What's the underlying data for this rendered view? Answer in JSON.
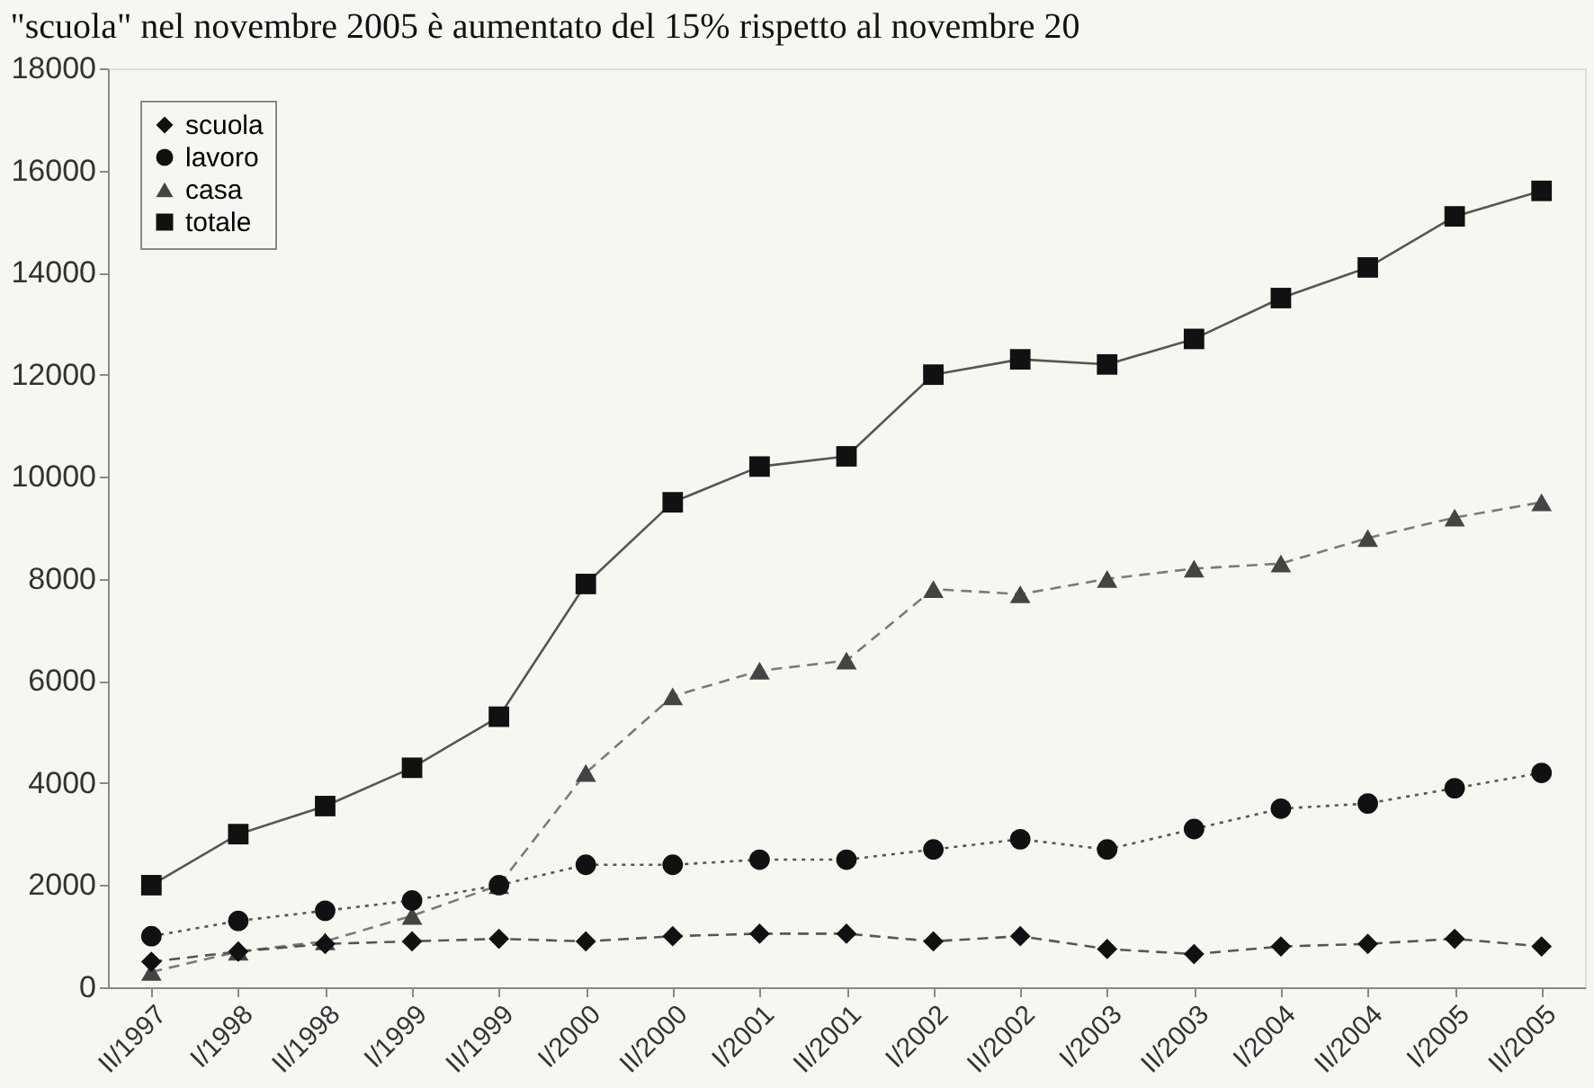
{
  "chart_data": {
    "type": "line",
    "annotations": [
      "\"scuola\" nel novembre 2005 è aumentato del 15% rispetto al novembre 20"
    ],
    "categories": [
      "II/1997",
      "I/1998",
      "II/1998",
      "I/1999",
      "II/1999",
      "I/2000",
      "II/2000",
      "I/2001",
      "II/2001",
      "I/2002",
      "II/2002",
      "I/2003",
      "II/2003",
      "I/2004",
      "II/2004",
      "I/2005",
      "II/2005"
    ],
    "series": [
      {
        "name": "scuola",
        "color": "#111111",
        "marker": "diamond",
        "line_style": "dashed",
        "values": [
          500,
          700,
          850,
          900,
          950,
          900,
          1000,
          1050,
          1050,
          900,
          1000,
          750,
          650,
          800,
          850,
          950,
          800
        ]
      },
      {
        "name": "lavoro",
        "color": "#111111",
        "marker": "circle",
        "line_style": "dotted",
        "values": [
          1000,
          1300,
          1500,
          1700,
          2000,
          2400,
          2400,
          2500,
          2500,
          2700,
          2900,
          2700,
          3100,
          3500,
          3600,
          3900,
          4200
        ]
      },
      {
        "name": "casa",
        "color": "#444444",
        "marker": "triangle",
        "line_style": "dashed",
        "values": [
          300,
          700,
          900,
          1400,
          2000,
          4200,
          5700,
          6200,
          6400,
          7800,
          7700,
          8000,
          8200,
          8300,
          8800,
          9200,
          9500
        ]
      },
      {
        "name": "totale",
        "color": "#111111",
        "marker": "square",
        "line_style": "solid",
        "values": [
          2000,
          3000,
          3550,
          4300,
          5300,
          7900,
          9500,
          10200,
          10400,
          12000,
          12300,
          12200,
          12700,
          13500,
          14100,
          15100,
          15600
        ]
      }
    ],
    "ylim": [
      0,
      18000
    ],
    "yticks": [
      0,
      2000,
      4000,
      6000,
      8000,
      10000,
      12000,
      14000,
      16000,
      18000
    ],
    "grid": false,
    "legend": "top left"
  }
}
